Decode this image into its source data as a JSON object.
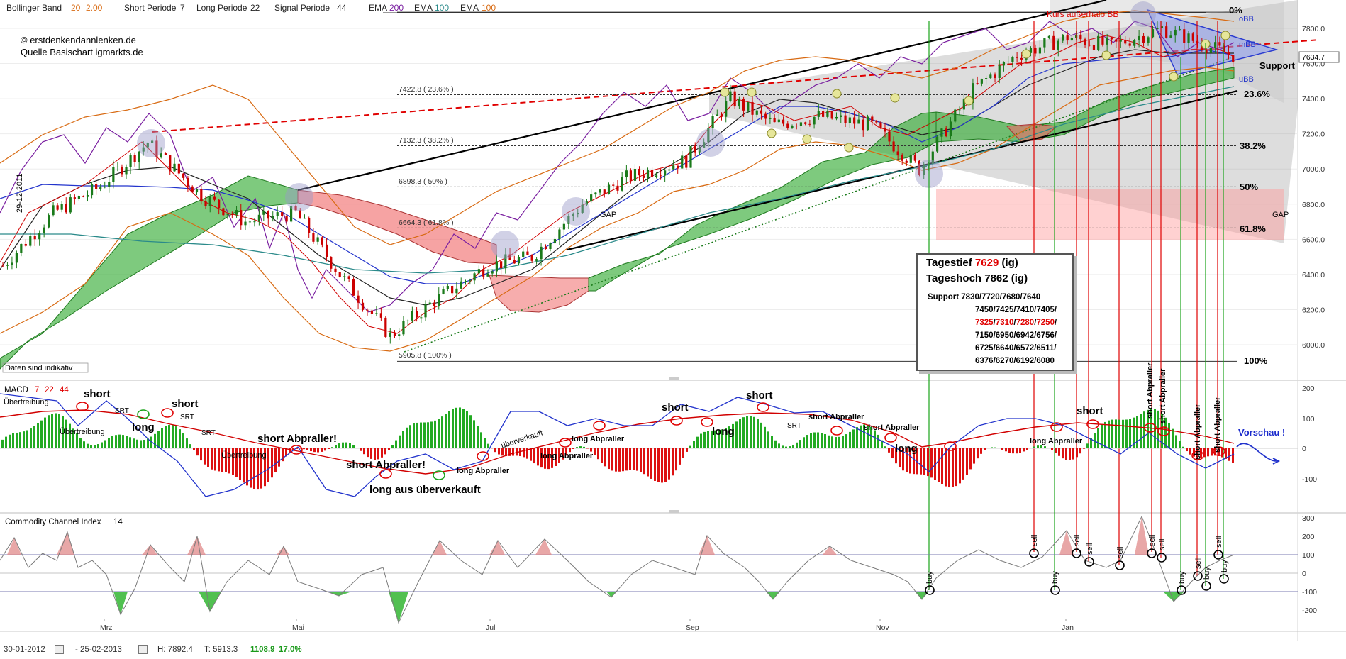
{
  "header": {
    "bb": {
      "label": "Bollinger Band",
      "v1": "20",
      "v2": "2.00"
    },
    "short": {
      "label": "Short Periode",
      "v": "7"
    },
    "long": {
      "label": "Long Periode",
      "v": "22"
    },
    "signal": {
      "label": "Signal Periode",
      "v": "44"
    },
    "ema1": {
      "label": "EMA",
      "v": "200"
    },
    "ema2": {
      "label": "EMA",
      "v": "100"
    },
    "ema3": {
      "label": "EMA",
      "v": "100"
    }
  },
  "copyright": {
    "line1": "© erstdenkendannlenken.de",
    "line2": "Quelle Basischart igmarkts.de"
  },
  "side_date": "29-12-2011",
  "disclaimer": "Daten sind indikativ",
  "last_price": "7634.7",
  "price_axis": [
    "7800.0",
    "7600.0",
    "7400.0",
    "7200.0",
    "7000.0",
    "6800.0",
    "6600.0",
    "6400.0",
    "6200.0",
    "6000.0"
  ],
  "x_axis": [
    "Mrz",
    "Mai",
    "Jul",
    "Sep",
    "Nov",
    "Jan"
  ],
  "fib": {
    "f236": "7422.8 ( 23.6% )",
    "f382": "7132.3 ( 38.2% )",
    "f50": "6898.3 ( 50% )",
    "f618": "6664.3 ( 61.8% )",
    "f100": "5905.8 ( 100% )"
  },
  "fib_right": {
    "p0": "0%",
    "p236": "23.6%",
    "p382": "38.2%",
    "p50": "50%",
    "p618": "61.8%",
    "p100": "100%"
  },
  "labels": {
    "kurs": "Kurs außerhalb BB",
    "support": "Support",
    "obb": "oBB",
    "mbb": "mBB",
    "ubb": "uBB",
    "gap_left": "GAP",
    "gap_right": "GAP"
  },
  "infobox": {
    "tagestief_label": "Tagestief",
    "tagestief_value": "7629",
    "tagestief_suffix": "(ig)",
    "tageshoch": "Tageshoch 7862 (ig)",
    "support_label": "Support",
    "s1": "7830/7720/7680/7640",
    "s2": "7450/7425/7410/7405/",
    "s3a": "7325",
    "s3b": "7310",
    "s3c": "7280",
    "s3d": "7250",
    "slash": "/",
    "s4": "7150/6950/6942/6756/",
    "s5": "6725/6640/6572/6511/",
    "s6": "6376/6270/6192/6080"
  },
  "macd": {
    "label": "MACD",
    "p1": "7",
    "p2": "22",
    "p3": "44",
    "axis": [
      "200",
      "100",
      "0",
      "-100"
    ],
    "annotations": {
      "short1": "short",
      "uebertreibung1": "Übertreibung",
      "srt1": "SRT",
      "long1": "long",
      "short2": "short",
      "srt2": "SRT",
      "uebertreibung2": "Übertreibung",
      "srt3": "SRT",
      "uebertreibung3": "Übertreibung",
      "short_abpraller1": "short Abpraller!",
      "short_abpraller2": "short Abpraller!",
      "long_ueberverkauft": "long aus überverkauft",
      "long_abpraller1": "long Abpraller",
      "ueberverkauft": "überverkauft",
      "long_abpraller2": "long Abpraller",
      "long_abpraller3": "long Abpraller",
      "short3": "short",
      "long2": "long",
      "short4": "short",
      "srt4": "SRT",
      "short_abpraller3": "short Abpraller",
      "short_abpraller4": "short Abpraller",
      "long3": "long",
      "long_abpraller4": "long Abpraller",
      "short5": "short",
      "short_abpraller5": "short Abpraller",
      "short_abpraller6": "short Abpraller",
      "short_abpraller7": "short Abpraller",
      "short_abpraller8": "short Abpraller",
      "vorschau": "Vorschau !"
    }
  },
  "cci": {
    "label": "Commodity Channel Index",
    "period": "14",
    "axis": [
      "300",
      "200",
      "100",
      "0",
      "-100",
      "-200"
    ],
    "sell": "sell",
    "buy": "buy"
  },
  "footer": {
    "from": "30-01-2012",
    "to": "- 25-02-2013",
    "high": "H: 7892.4",
    "low": "T: 5913.3",
    "change": "1108.9",
    "pct": "17.0%"
  },
  "colors": {
    "bull": "#1a7a1a",
    "bear": "#cc0000",
    "cloud_green": "#33b533",
    "cloud_red": "#f07070"
  },
  "chart_data": {
    "type": "candlestick",
    "title": "",
    "x_period": [
      "2012-01-30",
      "2013-02-25"
    ],
    "ylim": [
      5800,
      7950
    ],
    "y_ticks": [
      6000,
      6200,
      6400,
      6600,
      6800,
      7000,
      7200,
      7400,
      7600,
      7800
    ],
    "x_ticks": [
      "Mrz",
      "Mai",
      "Jul",
      "Sep",
      "Nov",
      "Jan"
    ],
    "close_series": [
      {
        "date": "2012-01-30",
        "close": 6450
      },
      {
        "date": "2012-02-15",
        "close": 6750
      },
      {
        "date": "2012-03-01",
        "close": 6900
      },
      {
        "date": "2012-03-16",
        "close": 7150
      },
      {
        "date": "2012-04-02",
        "close": 6850
      },
      {
        "date": "2012-04-16",
        "close": 6700
      },
      {
        "date": "2012-05-02",
        "close": 6750
      },
      {
        "date": "2012-05-16",
        "close": 6400
      },
      {
        "date": "2012-06-01",
        "close": 6050
      },
      {
        "date": "2012-06-15",
        "close": 6250
      },
      {
        "date": "2012-07-02",
        "close": 6450
      },
      {
        "date": "2012-07-16",
        "close": 6500
      },
      {
        "date": "2012-08-01",
        "close": 6800
      },
      {
        "date": "2012-08-15",
        "close": 6950
      },
      {
        "date": "2012-09-03",
        "close": 7050
      },
      {
        "date": "2012-09-17",
        "close": 7400
      },
      {
        "date": "2012-10-01",
        "close": 7250
      },
      {
        "date": "2012-10-15",
        "close": 7300
      },
      {
        "date": "2012-11-01",
        "close": 7250
      },
      {
        "date": "2012-11-16",
        "close": 7000
      },
      {
        "date": "2012-12-03",
        "close": 7450
      },
      {
        "date": "2012-12-17",
        "close": 7650
      },
      {
        "date": "2013-01-02",
        "close": 7750
      },
      {
        "date": "2013-01-16",
        "close": 7700
      },
      {
        "date": "2013-02-01",
        "close": 7800
      },
      {
        "date": "2013-02-25",
        "close": 7634.7
      }
    ],
    "fibonacci": [
      {
        "level": "0%",
        "value": 7892.4
      },
      {
        "level": "23.6%",
        "value": 7422.8
      },
      {
        "level": "38.2%",
        "value": 7132.3
      },
      {
        "level": "50%",
        "value": 6898.3
      },
      {
        "level": "61.8%",
        "value": 6664.3
      },
      {
        "level": "100%",
        "value": 5905.8
      }
    ]
  }
}
